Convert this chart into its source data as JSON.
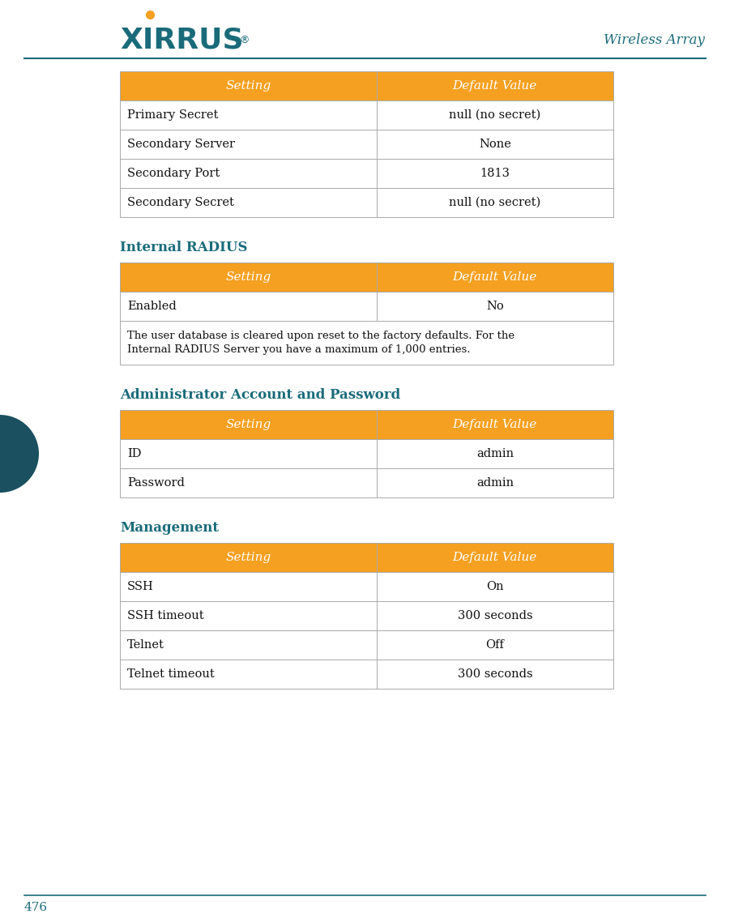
{
  "page_number": "476",
  "header_text": "Wireless Array",
  "orange_color": "#F5A020",
  "teal_color": "#1a6b7a",
  "dark_teal_circle": "#1a5060",
  "black_color": "#111111",
  "white_color": "#ffffff",
  "border_color": "#aaaaaa",
  "table1": {
    "headers": [
      "Setting",
      "Default Value"
    ],
    "rows": [
      [
        "Primary Secret",
        "null (no secret)"
      ],
      [
        "Secondary Server",
        "None"
      ],
      [
        "Secondary Port",
        "1813"
      ],
      [
        "Secondary Secret",
        "null (no secret)"
      ]
    ]
  },
  "section2_title": "Internal RADIUS",
  "table2": {
    "headers": [
      "Setting",
      "Default Value"
    ],
    "rows": [
      [
        "Enabled",
        "No"
      ]
    ],
    "note": "The user database is cleared upon reset to the factory defaults. For the\nInternal RADIUS Server you have a maximum of 1,000 entries."
  },
  "section3_title": "Administrator Account and Password",
  "table3": {
    "headers": [
      "Setting",
      "Default Value"
    ],
    "rows": [
      [
        "ID",
        "admin"
      ],
      [
        "Password",
        "admin"
      ]
    ]
  },
  "section4_title": "Management",
  "table4": {
    "headers": [
      "Setting",
      "Default Value"
    ],
    "rows": [
      [
        "SSH",
        "On"
      ],
      [
        "SSH timeout",
        "300 seconds"
      ],
      [
        "Telnet",
        "Off"
      ],
      [
        "Telnet timeout",
        "300 seconds"
      ]
    ]
  },
  "figwidth": 9.01,
  "figheight": 11.33,
  "dpi": 100
}
